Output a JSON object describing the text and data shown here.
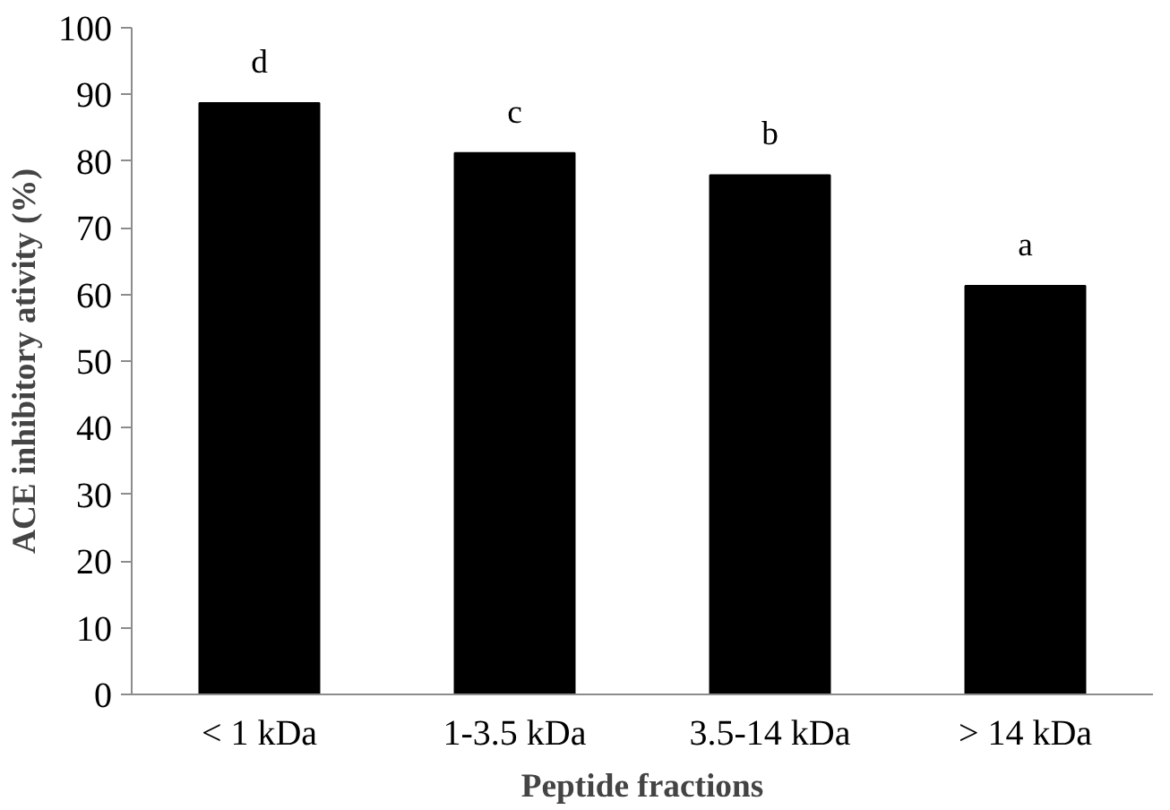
{
  "chart_data": {
    "type": "bar",
    "xlabel": "Peptide fractions",
    "ylabel": "ACE inhibitory ativity (%)",
    "categories": [
      "< 1 kDa",
      "1-3.5 kDa",
      "3.5-14 kDa",
      "> 14 kDa"
    ],
    "values": [
      88.7,
      81.2,
      77.9,
      61.3
    ],
    "color": "#000000",
    "ylim": [
      0,
      100
    ],
    "yticks": [
      0,
      10,
      20,
      30,
      40,
      50,
      60,
      70,
      80,
      90,
      100
    ],
    "grid": false,
    "annotations": [
      {
        "text": "d",
        "x": "< 1 kDa",
        "y": 88.7
      },
      {
        "text": "c",
        "x": "1-3.5 kDa",
        "y": 81.2
      },
      {
        "text": "b",
        "x": "3.5-14 kDa",
        "y": 77.9
      },
      {
        "text": "a",
        "x": "> 14 kDa",
        "y": 61.3
      }
    ]
  }
}
